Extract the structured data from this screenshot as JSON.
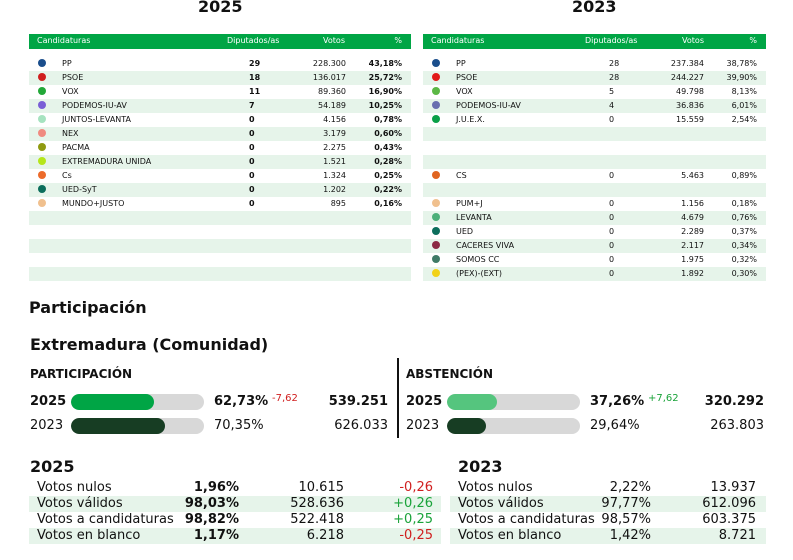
{
  "left_panel": {
    "year": "2025",
    "headers": {
      "party": "Candidaturas",
      "seats": "Diputados/as",
      "votes": "Votos",
      "pct": "%"
    },
    "rows": [
      {
        "party": "PP",
        "seats": "29",
        "votes": "228.300",
        "pct": "43,18%",
        "color": "#1a4e8c"
      },
      {
        "party": "PSOE",
        "seats": "18",
        "votes": "136.017",
        "pct": "25,72%",
        "color": "#d01f1f"
      },
      {
        "party": "VOX",
        "seats": "11",
        "votes": "89.360",
        "pct": "16,90%",
        "color": "#22a838"
      },
      {
        "party": "PODEMOS-IU-AV",
        "seats": "7",
        "votes": "54.189",
        "pct": "10,25%",
        "color": "#7a5fd6"
      },
      {
        "party": "JUNTOS-LEVANTA",
        "seats": "0",
        "votes": "4.156",
        "pct": "0,78%",
        "color": "#a6e3c0"
      },
      {
        "party": "NEX",
        "seats": "0",
        "votes": "3.179",
        "pct": "0,60%",
        "color": "#f08a80"
      },
      {
        "party": "PACMA",
        "seats": "0",
        "votes": "2.275",
        "pct": "0,43%",
        "color": "#8f9a10"
      },
      {
        "party": "EXTREMADURA UNIDA",
        "seats": "0",
        "votes": "1.521",
        "pct": "0,28%",
        "color": "#b5e61a"
      },
      {
        "party": "Cs",
        "seats": "0",
        "votes": "1.324",
        "pct": "0,25%",
        "color": "#ec6b2b"
      },
      {
        "party": "UED-SyT",
        "seats": "0",
        "votes": "1.202",
        "pct": "0,22%",
        "color": "#0c6e5c"
      },
      {
        "party": "MUNDO+JUSTO",
        "seats": "0",
        "votes": "895",
        "pct": "0,16%",
        "color": "#f0c08e"
      }
    ]
  },
  "right_panel": {
    "year": "2023",
    "headers": {
      "party": "Candidaturas",
      "seats": "Diputados/as",
      "votes": "Votos",
      "pct": "%"
    },
    "rows": [
      {
        "party": "PP",
        "seats": "28",
        "votes": "237.384",
        "pct": "38,78%",
        "color": "#1a4e8c"
      },
      {
        "party": "PSOE",
        "seats": "28",
        "votes": "244.227",
        "pct": "39,90%",
        "color": "#e21a1a"
      },
      {
        "party": "VOX",
        "seats": "5",
        "votes": "49.798",
        "pct": "8,13%",
        "color": "#5bb845"
      },
      {
        "party": "PODEMOS-IU-AV",
        "seats": "4",
        "votes": "36.836",
        "pct": "6,01%",
        "color": "#6a6fb0"
      },
      {
        "party": "J.U.E.X.",
        "seats": "0",
        "votes": "15.559",
        "pct": "2,54%",
        "color": "#0aa048"
      },
      {
        "party": "",
        "seats": "",
        "votes": "",
        "pct": "",
        "color": ""
      },
      {
        "party": "",
        "seats": "",
        "votes": "",
        "pct": "",
        "color": ""
      },
      {
        "party": "",
        "seats": "",
        "votes": "",
        "pct": "",
        "color": ""
      },
      {
        "party": "CS",
        "seats": "0",
        "votes": "5.463",
        "pct": "0,89%",
        "color": "#e06520"
      },
      {
        "party": "",
        "seats": "",
        "votes": "",
        "pct": "",
        "color": ""
      },
      {
        "party": "PUM+J",
        "seats": "0",
        "votes": "1.156",
        "pct": "0,18%",
        "color": "#f0c08e"
      },
      {
        "party": "LEVANTA",
        "seats": "0",
        "votes": "4.679",
        "pct": "0,76%",
        "color": "#4db07a"
      },
      {
        "party": "UED",
        "seats": "0",
        "votes": "2.289",
        "pct": "0,37%",
        "color": "#0c6e5c"
      },
      {
        "party": "CACERES VIVA",
        "seats": "0",
        "votes": "2.117",
        "pct": "0,34%",
        "color": "#8c2a45"
      },
      {
        "party": "SOMOS CC",
        "seats": "0",
        "votes": "1.975",
        "pct": "0,32%",
        "color": "#3e7a66"
      },
      {
        "party": "(PEX)-(EXT)",
        "seats": "0",
        "votes": "1.892",
        "pct": "0,30%",
        "color": "#f2d218"
      }
    ]
  },
  "participation": {
    "section_title": "Participación",
    "region_title": "Extremadura (Comunidad)",
    "part_label": "PARTICIPACIÓN",
    "abst_label": "ABSTENCIÓN",
    "part_rows": [
      {
        "year": "2025",
        "pct": "62,73%",
        "delta": "-7,62",
        "count": "539.251",
        "fraction": 0.6273,
        "color": "#00a545",
        "bold": true
      },
      {
        "year": "2023",
        "pct": "70,35%",
        "delta": "",
        "count": "626.033",
        "fraction": 0.7035,
        "color": "#173d23",
        "bold": false
      }
    ],
    "abst_rows": [
      {
        "year": "2025",
        "pct": "37,26%",
        "delta": "+7,62",
        "count": "320.292",
        "fraction": 0.3726,
        "color": "#55c57e",
        "bold": true
      },
      {
        "year": "2023",
        "pct": "29,64%",
        "delta": "",
        "count": "263.803",
        "fraction": 0.2964,
        "color": "#173d23",
        "bold": false
      }
    ]
  },
  "summary": {
    "left": {
      "year": "2025",
      "rows": [
        {
          "label": "Votos nulos",
          "pct": "1,96%",
          "count": "10.615",
          "delta": "-0,26",
          "sign": "neg"
        },
        {
          "label": "Votos válidos",
          "pct": "98,03%",
          "count": "528.636",
          "delta": "+0,26",
          "sign": "pos"
        },
        {
          "label": "Votos a candidaturas",
          "pct": "98,82%",
          "count": "522.418",
          "delta": "+0,25",
          "sign": "pos"
        },
        {
          "label": "Votos en blanco",
          "pct": "1,17%",
          "count": "6.218",
          "delta": "-0,25",
          "sign": "neg"
        }
      ]
    },
    "right": {
      "year": "2023",
      "rows": [
        {
          "label": "Votos nulos",
          "pct": "2,22%",
          "count": "13.937"
        },
        {
          "label": "Votos válidos",
          "pct": "97,77%",
          "count": "612.096"
        },
        {
          "label": "Votos a candidaturas",
          "pct": "98,57%",
          "count": "603.375"
        },
        {
          "label": "Votos en blanco",
          "pct": "1,42%",
          "count": "8.721"
        }
      ]
    }
  }
}
